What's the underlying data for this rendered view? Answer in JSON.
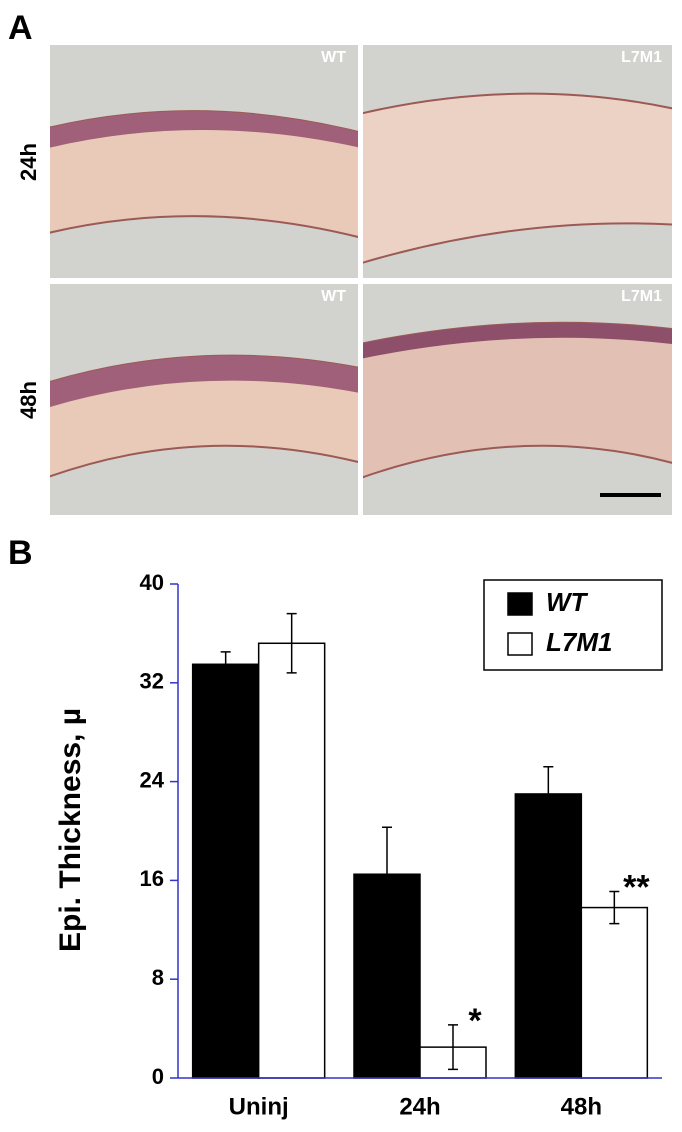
{
  "panel_a": {
    "label": "A",
    "rows": [
      "24h",
      "48h"
    ],
    "columns": [
      "WT",
      "L7M1"
    ]
  },
  "chart_data": {
    "type": "bar",
    "panel_label": "B",
    "ylabel": "Epi. Thickness, µ",
    "categories": [
      "Uninj",
      "24h",
      "48h"
    ],
    "series": [
      {
        "name": "WT",
        "color": "#000000",
        "values": [
          33.5,
          16.5,
          23
        ],
        "errors": [
          1,
          3.8,
          2.2
        ],
        "annotations": [
          null,
          null,
          null
        ]
      },
      {
        "name": "L7M1",
        "color": "#ffffff",
        "values": [
          35.2,
          2.5,
          13.8
        ],
        "errors": [
          2.4,
          1.8,
          1.3
        ],
        "annotations": [
          null,
          "*",
          "**"
        ]
      }
    ],
    "ylim": [
      0,
      40
    ],
    "yticks": [
      0,
      8,
      16,
      24,
      32,
      40
    ],
    "legend": "upper right"
  }
}
